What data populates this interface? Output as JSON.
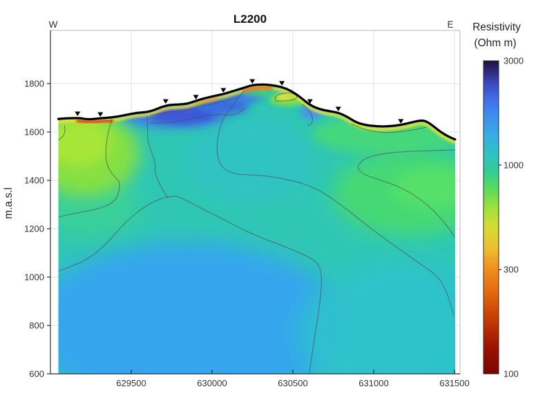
{
  "figure": {
    "title": "L2200",
    "west_label": "W",
    "east_label": "E",
    "ylabel": "m.a.s.l"
  },
  "chart_data": {
    "type": "heatmap",
    "subtype": "2d-resistivity-contour-section",
    "title": "L2200",
    "west_label": "W",
    "east_label": "E",
    "xlabel": "",
    "ylabel": "m.a.s.l",
    "x_ticks": [
      629500,
      630000,
      630500,
      631000,
      631500
    ],
    "y_ticks": [
      1800,
      1600,
      1400,
      1200,
      1000,
      800,
      600
    ],
    "x_range": [
      629010,
      631530
    ],
    "y_range": [
      600,
      2020
    ],
    "grid": true,
    "colorbar": {
      "title_line1": "Resistivity",
      "title_line2": "(Ohm m)",
      "scale": "log",
      "ticks": [
        3000,
        1000,
        300,
        100
      ],
      "tick_fractions_from_bottom": [
        1.0,
        0.667,
        0.333,
        0.0
      ],
      "gradient_stops_from_bottom": [
        [
          0.0,
          "#7a0403"
        ],
        [
          0.09,
          "#9e1501"
        ],
        [
          0.17,
          "#c23a05"
        ],
        [
          0.26,
          "#e4670f"
        ],
        [
          0.33,
          "#f08c1e"
        ],
        [
          0.4,
          "#edbd30"
        ],
        [
          0.47,
          "#d6dc33"
        ],
        [
          0.53,
          "#a0e03a"
        ],
        [
          0.59,
          "#5cda5c"
        ],
        [
          0.645,
          "#33cd92"
        ],
        [
          0.7,
          "#2ec3c0"
        ],
        [
          0.76,
          "#36ade4"
        ],
        [
          0.83,
          "#3f8cf0"
        ],
        [
          0.88,
          "#3f6ce8"
        ],
        [
          0.925,
          "#3c4cc0"
        ],
        [
          0.965,
          "#2f2a7e"
        ],
        [
          1.0,
          "#201040"
        ]
      ]
    },
    "base_color": "#2fc7b4",
    "topography": [
      [
        629049,
        1654
      ],
      [
        629168,
        1660
      ],
      [
        629232,
        1651
      ],
      [
        629309,
        1657
      ],
      [
        629381,
        1660
      ],
      [
        629457,
        1669
      ],
      [
        629534,
        1680
      ],
      [
        629615,
        1683
      ],
      [
        629713,
        1711
      ],
      [
        629798,
        1714
      ],
      [
        629849,
        1717
      ],
      [
        629900,
        1729
      ],
      [
        629955,
        1740
      ],
      [
        630028,
        1751
      ],
      [
        630070,
        1757
      ],
      [
        630138,
        1771
      ],
      [
        630198,
        1783
      ],
      [
        630249,
        1794
      ],
      [
        630309,
        1797
      ],
      [
        630368,
        1794
      ],
      [
        630432,
        1786
      ],
      [
        630487,
        1771
      ],
      [
        630543,
        1746
      ],
      [
        630606,
        1711
      ],
      [
        630666,
        1694
      ],
      [
        630726,
        1686
      ],
      [
        630781,
        1680
      ],
      [
        630836,
        1663
      ],
      [
        630891,
        1640
      ],
      [
        630947,
        1629
      ],
      [
        631019,
        1623
      ],
      [
        631091,
        1623
      ],
      [
        631168,
        1629
      ],
      [
        631236,
        1640
      ],
      [
        631296,
        1649
      ],
      [
        631330,
        1643
      ],
      [
        631372,
        1623
      ],
      [
        631415,
        1600
      ],
      [
        631457,
        1583
      ],
      [
        631504,
        1569
      ]
    ],
    "electrode_positions": [
      629168,
      629309,
      629713,
      629900,
      630070,
      630249,
      630432,
      630606,
      630781,
      631168
    ],
    "contours": [
      {
        "name": "left-edge-arc",
        "points": [
          [
            629049,
            1566
          ],
          [
            629074,
            1577
          ],
          [
            629091,
            1600
          ],
          [
            629087,
            1628
          ]
        ]
      },
      {
        "name": "left-green-boundary",
        "points": [
          [
            629381,
            1654
          ],
          [
            629355,
            1597
          ],
          [
            629343,
            1531
          ],
          [
            629343,
            1483
          ],
          [
            629364,
            1443
          ],
          [
            629398,
            1414
          ],
          [
            629428,
            1394
          ],
          [
            629428,
            1363
          ],
          [
            629406,
            1317
          ],
          [
            629330,
            1288
          ],
          [
            629211,
            1271
          ],
          [
            629104,
            1257
          ],
          [
            629049,
            1248
          ]
        ]
      },
      {
        "name": "saddle-descent",
        "points": [
          [
            629598,
            1668
          ],
          [
            629602,
            1603
          ],
          [
            629602,
            1560
          ],
          [
            629623,
            1523
          ],
          [
            629649,
            1474
          ],
          [
            629645,
            1437
          ],
          [
            629666,
            1397
          ],
          [
            629700,
            1354
          ],
          [
            629730,
            1326
          ]
        ]
      },
      {
        "name": "deep-arch",
        "points": [
          [
            629049,
            1025
          ],
          [
            629147,
            1048
          ],
          [
            629245,
            1080
          ],
          [
            629338,
            1131
          ],
          [
            629423,
            1197
          ],
          [
            629509,
            1254
          ],
          [
            629602,
            1300
          ],
          [
            629687,
            1326
          ],
          [
            629764,
            1337
          ],
          [
            629815,
            1326
          ],
          [
            629913,
            1291
          ],
          [
            630019,
            1257
          ],
          [
            630147,
            1211
          ],
          [
            630283,
            1168
          ],
          [
            630445,
            1128
          ],
          [
            630594,
            1085
          ],
          [
            630657,
            1057
          ],
          [
            630679,
            1008
          ],
          [
            630674,
            931
          ],
          [
            630653,
            826
          ],
          [
            630623,
            703
          ],
          [
            630602,
            600
          ]
        ]
      },
      {
        "name": "central-diagonal",
        "points": [
          [
            630198,
            1771
          ],
          [
            630134,
            1717
          ],
          [
            630070,
            1660
          ],
          [
            630040,
            1597
          ],
          [
            630028,
            1534
          ],
          [
            630040,
            1480
          ],
          [
            630074,
            1446
          ],
          [
            630138,
            1426
          ],
          [
            630215,
            1423
          ],
          [
            630317,
            1420
          ],
          [
            630453,
            1406
          ],
          [
            630585,
            1383
          ],
          [
            630700,
            1346
          ],
          [
            630828,
            1283
          ],
          [
            630947,
            1220
          ],
          [
            631049,
            1168
          ],
          [
            631168,
            1111
          ],
          [
            631296,
            1051
          ],
          [
            631398,
            1003
          ],
          [
            631445,
            948
          ],
          [
            631474,
            894
          ],
          [
            631496,
            837
          ]
        ]
      },
      {
        "name": "right-c-loop",
        "points": [
          [
            631509,
            1526
          ],
          [
            631381,
            1523
          ],
          [
            631236,
            1520
          ],
          [
            631083,
            1514
          ],
          [
            630964,
            1497
          ],
          [
            630909,
            1471
          ],
          [
            630900,
            1446
          ],
          [
            630943,
            1423
          ],
          [
            631032,
            1403
          ],
          [
            631134,
            1380
          ],
          [
            631245,
            1343
          ],
          [
            631347,
            1291
          ],
          [
            631423,
            1237
          ],
          [
            631474,
            1194
          ],
          [
            631500,
            1166
          ]
        ]
      },
      {
        "name": "bench-shallow",
        "points": [
          [
            630862,
            1634
          ],
          [
            630926,
            1614
          ],
          [
            631011,
            1600
          ],
          [
            631104,
            1597
          ],
          [
            631189,
            1603
          ],
          [
            631266,
            1611
          ],
          [
            631326,
            1620
          ]
        ]
      },
      {
        "name": "flank-shallow-1",
        "points": [
          [
            629615,
            1668
          ],
          [
            629700,
            1680
          ],
          [
            629785,
            1686
          ],
          [
            629875,
            1694
          ],
          [
            629955,
            1709
          ],
          [
            630040,
            1723
          ],
          [
            630113,
            1734
          ],
          [
            630164,
            1743
          ]
        ]
      },
      {
        "name": "flank-shallow-2",
        "points": [
          [
            629615,
            1637
          ],
          [
            629721,
            1637
          ],
          [
            629815,
            1646
          ],
          [
            629913,
            1660
          ],
          [
            629998,
            1671
          ],
          [
            630070,
            1674
          ],
          [
            630126,
            1668
          ],
          [
            630168,
            1680
          ],
          [
            630198,
            1694
          ]
        ]
      },
      {
        "name": "yellow-pocket-loop",
        "points": [
          [
            630394,
            1728
          ],
          [
            630385,
            1746
          ],
          [
            630419,
            1757
          ],
          [
            630470,
            1763
          ],
          [
            630513,
            1757
          ],
          [
            630530,
            1743
          ],
          [
            630500,
            1731
          ],
          [
            630445,
            1728
          ],
          [
            630394,
            1728
          ]
        ]
      },
      {
        "name": "small-right-hook",
        "points": [
          [
            630560,
            1714
          ],
          [
            630589,
            1697
          ],
          [
            630615,
            1674
          ],
          [
            630623,
            1651
          ],
          [
            630615,
            1631
          ],
          [
            630589,
            1626
          ]
        ]
      }
    ],
    "color_features": [
      {
        "name": "center-mid-cyan",
        "e": 630232,
        "z": 1488,
        "re": 383,
        "rz": 171,
        "color": "#30bfd2",
        "blur": 14,
        "op": 0.55
      },
      {
        "name": "bottom-left-blue-zone",
        "e": 629849,
        "z": 803,
        "re": 979,
        "rz": 343,
        "color": "#36a6ee",
        "blur": 16,
        "op": 1
      },
      {
        "name": "bottom-right-cyan-zone",
        "e": 631211,
        "z": 774,
        "re": 680,
        "rz": 290,
        "color": "#2fc2cd",
        "blur": 16,
        "op": 0.9
      },
      {
        "name": "left-mid-green-tongue",
        "e": 629253,
        "z": 1289,
        "re": 298,
        "rz": 129,
        "color": "#43d589",
        "blur": 14,
        "op": 0.6
      },
      {
        "name": "upper-left-green-zone",
        "e": 629211,
        "z": 1511,
        "re": 340,
        "rz": 177,
        "color": "#8ae13e",
        "blur": 12,
        "op": 0.95
      },
      {
        "name": "upper-left-green-core",
        "e": 629177,
        "z": 1554,
        "re": 205,
        "rz": 100,
        "color": "#abe737",
        "blur": 10,
        "op": 0.9
      },
      {
        "name": "mid-right-green-zone",
        "e": 631232,
        "z": 1346,
        "re": 489,
        "rz": 177,
        "color": "#49da6e",
        "blur": 13,
        "op": 0.9
      },
      {
        "name": "mid-right-green-core",
        "e": 631372,
        "z": 1369,
        "re": 255,
        "rz": 86,
        "color": "#58e268",
        "blur": 10,
        "op": 0.85
      },
      {
        "name": "right-nearsurface-green",
        "e": 631083,
        "z": 1589,
        "re": 468,
        "rz": 80,
        "color": "#4cda72",
        "blur": 8,
        "op": 0.85
      },
      {
        "name": "leftflank-blue-wide",
        "e": 629764,
        "z": 1666,
        "re": 319,
        "rz": 49,
        "color": "#3c7ce9",
        "blur": 7,
        "op": 0.95
      },
      {
        "name": "leftflank-blue-deep",
        "e": 629815,
        "z": 1671,
        "re": 204,
        "rz": 37,
        "color": "#3e52d6",
        "blur": 5,
        "op": 0.9
      },
      {
        "name": "upperflank-blue-1",
        "e": 630070,
        "z": 1711,
        "re": 162,
        "rz": 40,
        "color": "#3b67e2",
        "blur": 6,
        "op": 0.95
      },
      {
        "name": "upperflank-blue-2",
        "e": 630198,
        "z": 1751,
        "re": 119,
        "rz": 31,
        "color": "#3e79ea",
        "blur": 5,
        "op": 0.9
      },
      {
        "name": "right-of-peak-blue",
        "e": 630615,
        "z": 1683,
        "re": 72,
        "rz": 31,
        "color": "#4c92ea",
        "blur": 4,
        "op": 0.9
      },
      {
        "name": "rightflank-yellowgreen-pocket",
        "e": 630466,
        "z": 1734,
        "re": 111,
        "rz": 26,
        "color": "#8fe03e",
        "blur": 4,
        "op": 0.9
      },
      {
        "name": "rightflank-yellow-core",
        "e": 630445,
        "z": 1746,
        "re": 51,
        "rz": 14,
        "color": "#e6e43c",
        "blur": 3,
        "op": 0.9
      },
      {
        "name": "under-peak-green",
        "e": 630283,
        "z": 1766,
        "re": 94,
        "rz": 20,
        "color": "#50cf72",
        "blur": 4,
        "op": 0.8
      }
    ],
    "surface_strips": [
      {
        "name": "yellow-surface-strip",
        "emin": 629049,
        "emax": 631504,
        "off": 4,
        "w": 4.5,
        "color": "#f3e335",
        "op": 0.95
      },
      {
        "name": "red-surface-strip-left",
        "emin": 629074,
        "emax": 629411,
        "off": 4.5,
        "w": 5,
        "color": "#e23b09",
        "op": 0.95
      },
      {
        "name": "orange-surface-strip-mid",
        "emin": 629851,
        "emax": 630047,
        "off": 4,
        "w": 3.5,
        "color": "#f29016",
        "op": 0.85
      },
      {
        "name": "redorange-surface-strip-peak",
        "emin": 630160,
        "emax": 630400,
        "off": 4.5,
        "w": 4.5,
        "color": "#ed5f0d",
        "op": 0.9
      }
    ],
    "contour_color": "#4f4f4f",
    "topo_line_color": "#000000",
    "grid_color": "#e2e2e2",
    "axis_color": "#2b2b2b",
    "box_color": "#b5b5b5"
  }
}
